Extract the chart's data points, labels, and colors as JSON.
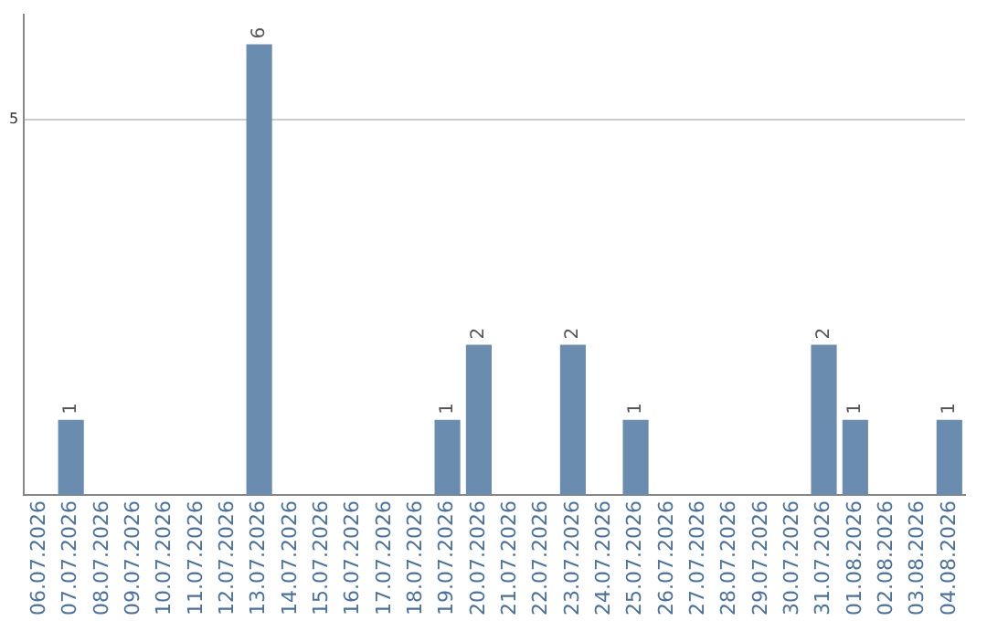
{
  "chart_data": {
    "type": "bar",
    "categories": [
      "06.07.2026",
      "07.07.2026",
      "08.07.2026",
      "09.07.2026",
      "10.07.2026",
      "11.07.2026",
      "12.07.2026",
      "13.07.2026",
      "14.07.2026",
      "15.07.2026",
      "16.07.2026",
      "17.07.2026",
      "18.07.2026",
      "19.07.2026",
      "20.07.2026",
      "21.07.2026",
      "22.07.2026",
      "23.07.2026",
      "24.07.2026",
      "25.07.2026",
      "26.07.2026",
      "27.07.2026",
      "28.07.2026",
      "29.07.2026",
      "30.07.2026",
      "31.07.2026",
      "01.08.2026",
      "02.08.2026",
      "03.08.2026",
      "04.08.2026"
    ],
    "values": [
      0,
      1,
      0,
      0,
      0,
      0,
      0,
      6,
      0,
      0,
      0,
      0,
      0,
      1,
      2,
      0,
      0,
      2,
      0,
      1,
      0,
      0,
      0,
      0,
      0,
      2,
      1,
      0,
      0,
      1
    ],
    "value_labels": [
      null,
      "1",
      null,
      null,
      null,
      null,
      null,
      "6",
      null,
      null,
      null,
      null,
      null,
      "1",
      "2",
      null,
      null,
      "2",
      null,
      "1",
      null,
      null,
      null,
      null,
      null,
      "2",
      "1",
      null,
      null,
      "1"
    ],
    "color": "#6a8cae",
    "ylim": [
      0,
      6.4
    ],
    "yticks": [
      5
    ],
    "grid": "y",
    "legend": false
  }
}
